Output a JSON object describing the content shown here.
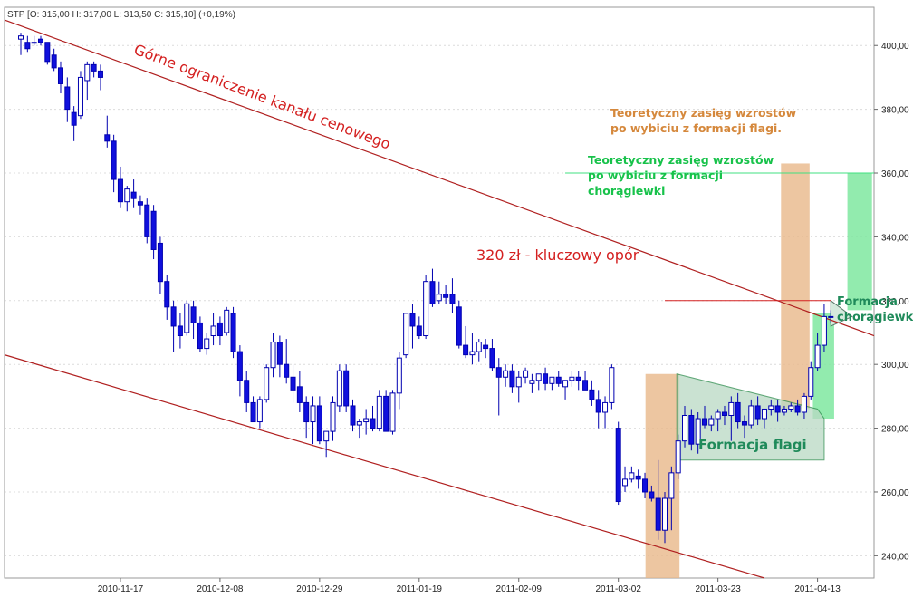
{
  "chart_data": {
    "type": "candlestick",
    "ticker_header": "STP [O: 315,00  H: 317,00  L: 313,50  C: 315,10] (+0,19%)",
    "ylim": [
      233,
      412
    ],
    "y_ticks": [
      "400,00",
      "380,00",
      "360,00",
      "340,00",
      "320,00",
      "300,00",
      "280,00",
      "260,00",
      "240,00"
    ],
    "y_tick_values": [
      400,
      380,
      360,
      340,
      320,
      300,
      280,
      260,
      240
    ],
    "x_ticks": [
      "2010-11-17",
      "2010-12-08",
      "2010-12-29",
      "2011-01-19",
      "2011-02-09",
      "2011-03-02",
      "2011-03-23",
      "2011-04-13"
    ],
    "x_tick_indices": [
      15,
      30,
      45,
      60,
      75,
      90,
      105,
      120
    ],
    "bar_count": 128,
    "candles": [
      [
        402,
        404,
        397,
        403
      ],
      [
        401,
        403,
        398,
        399
      ],
      [
        401,
        403,
        400,
        401
      ],
      [
        402,
        403,
        400,
        401
      ],
      [
        401,
        401,
        394,
        395
      ],
      [
        397,
        399,
        392,
        393
      ],
      [
        393,
        395,
        385,
        388
      ],
      [
        387,
        390,
        376,
        380
      ],
      [
        379,
        381,
        370,
        375
      ],
      [
        378,
        392,
        377,
        390
      ],
      [
        389,
        395,
        383,
        394
      ],
      [
        394,
        395,
        390,
        392
      ],
      [
        392,
        394,
        386,
        390
      ],
      [
        372,
        378,
        368,
        370
      ],
      [
        370,
        372,
        354,
        358
      ],
      [
        358,
        362,
        349,
        351
      ],
      [
        351,
        356,
        348,
        355
      ],
      [
        354,
        358,
        349,
        352
      ],
      [
        351,
        353,
        347,
        350
      ],
      [
        350,
        352,
        338,
        340
      ],
      [
        348,
        350,
        333,
        336
      ],
      [
        338,
        340,
        322,
        326
      ],
      [
        326,
        328,
        314,
        318
      ],
      [
        318,
        320,
        304,
        312
      ],
      [
        312,
        316,
        305,
        309
      ],
      [
        310,
        320,
        309,
        319
      ],
      [
        318,
        320,
        308,
        313
      ],
      [
        313,
        315,
        304,
        305
      ],
      [
        305,
        310,
        303,
        308
      ],
      [
        309,
        316,
        306,
        312
      ],
      [
        313,
        315,
        306,
        309
      ],
      [
        310,
        318,
        309,
        317
      ],
      [
        316,
        318,
        302,
        304
      ],
      [
        304,
        306,
        290,
        295
      ],
      [
        295,
        298,
        285,
        288
      ],
      [
        288,
        290,
        282,
        282
      ],
      [
        282,
        290,
        280,
        289
      ],
      [
        289,
        300,
        288,
        299
      ],
      [
        299,
        310,
        296,
        307
      ],
      [
        307,
        309,
        296,
        300
      ],
      [
        300,
        308,
        294,
        296
      ],
      [
        296,
        300,
        288,
        292
      ],
      [
        293,
        298,
        285,
        288
      ],
      [
        288,
        290,
        277,
        282
      ],
      [
        282,
        290,
        275,
        287
      ],
      [
        287,
        290,
        275,
        276
      ],
      [
        276,
        278,
        271,
        279
      ],
      [
        279,
        290,
        276,
        288
      ],
      [
        287,
        300,
        285,
        298
      ],
      [
        298,
        300,
        285,
        287
      ],
      [
        287,
        289,
        279,
        281
      ],
      [
        281,
        283,
        277,
        282
      ],
      [
        282,
        286,
        278,
        283
      ],
      [
        283,
        287,
        279,
        280
      ],
      [
        280,
        292,
        279,
        290
      ],
      [
        290,
        292,
        279,
        279
      ],
      [
        279,
        292,
        278,
        291
      ],
      [
        291,
        304,
        286,
        302
      ],
      [
        303,
        316,
        302,
        316
      ],
      [
        316,
        319,
        305,
        312
      ],
      [
        312,
        315,
        308,
        309
      ],
      [
        309,
        328,
        308,
        326
      ],
      [
        326,
        330,
        318,
        319
      ],
      [
        320,
        326,
        319,
        322
      ],
      [
        322,
        325,
        319,
        321
      ],
      [
        322,
        327,
        316,
        319
      ],
      [
        318,
        320,
        305,
        306
      ],
      [
        306,
        312,
        302,
        303
      ],
      [
        303,
        310,
        300,
        304
      ],
      [
        304,
        308,
        301,
        307
      ],
      [
        306,
        308,
        302,
        305
      ],
      [
        305,
        308,
        298,
        299
      ],
      [
        299,
        302,
        284,
        296
      ],
      [
        296,
        300,
        293,
        298
      ],
      [
        298,
        300,
        291,
        293
      ],
      [
        293,
        298,
        288,
        296
      ],
      [
        296,
        299,
        294,
        298
      ],
      [
        294,
        297,
        291,
        295
      ],
      [
        295,
        297,
        292,
        297
      ],
      [
        297,
        299,
        292,
        294
      ],
      [
        294,
        296,
        292,
        296
      ],
      [
        296,
        298,
        293,
        294
      ],
      [
        293,
        295,
        289,
        295
      ],
      [
        295,
        298,
        293,
        296
      ],
      [
        296,
        298,
        292,
        295
      ],
      [
        295,
        298,
        292,
        292
      ],
      [
        292,
        295,
        287,
        289
      ],
      [
        289,
        292,
        280,
        285
      ],
      [
        285,
        290,
        280,
        288
      ],
      [
        288,
        300,
        286,
        299
      ],
      [
        280,
        282,
        256,
        257
      ],
      [
        262,
        268,
        260,
        264
      ],
      [
        264,
        268,
        263,
        266
      ],
      [
        265,
        267,
        261,
        264
      ],
      [
        264,
        266,
        258,
        260
      ],
      [
        260,
        262,
        257,
        258
      ],
      [
        258,
        270,
        245,
        248
      ],
      [
        248,
        260,
        244,
        258
      ],
      [
        258,
        268,
        248,
        266
      ],
      [
        266,
        278,
        264,
        276
      ],
      [
        276,
        287,
        274,
        284
      ],
      [
        284,
        286,
        273,
        275
      ],
      [
        275,
        285,
        272,
        283
      ],
      [
        283,
        287,
        280,
        281
      ],
      [
        281,
        284,
        279,
        283
      ],
      [
        283,
        286,
        279,
        285
      ],
      [
        285,
        287,
        281,
        284
      ],
      [
        284,
        290,
        276,
        288
      ],
      [
        288,
        291,
        280,
        282
      ],
      [
        282,
        284,
        277,
        281
      ],
      [
        281,
        289,
        280,
        287
      ],
      [
        287,
        290,
        281,
        283
      ],
      [
        283,
        286,
        280,
        286
      ],
      [
        286,
        289,
        284,
        287
      ],
      [
        287,
        289,
        282,
        285
      ],
      [
        285,
        287,
        284,
        286
      ],
      [
        286,
        288,
        285,
        287
      ],
      [
        287,
        289,
        284,
        285
      ],
      [
        285,
        291,
        283,
        290
      ],
      [
        290,
        301,
        289,
        299
      ],
      [
        299,
        310,
        298,
        306
      ],
      [
        306,
        319,
        304,
        315
      ],
      [
        315,
        317,
        313,
        315
      ]
    ],
    "annotations": {
      "channel_label": "Górne ograniczenie kanału cenowego",
      "resistance_label": "320 zł - kluczowy opór",
      "flag_range_label": [
        "Teoretyczny zasięg wzrostów",
        "po wybiciu z formacji flagi."
      ],
      "pennant_range_label": [
        "Teoretyczny zasięg wzrostów",
        "po wybiciu z formacji",
        "chorągiewki"
      ],
      "flag_label": "Formacja flagi",
      "pennant_label": [
        "Formacja",
        "chorągiewki"
      ]
    },
    "levels": {
      "resistance": 320,
      "pennant_target": 360
    },
    "colors": {
      "bear": "#1010dd",
      "bull": "#ffffff",
      "wick": "#0000b0",
      "channel": "#b02020",
      "resistance": "#d42020",
      "flag_box": "#e8b88a",
      "pennant_box": "#7fe8a0",
      "flag_zone": "#b9d9c4",
      "target_line": "#40e080",
      "grid": "#dcdcdc"
    }
  }
}
